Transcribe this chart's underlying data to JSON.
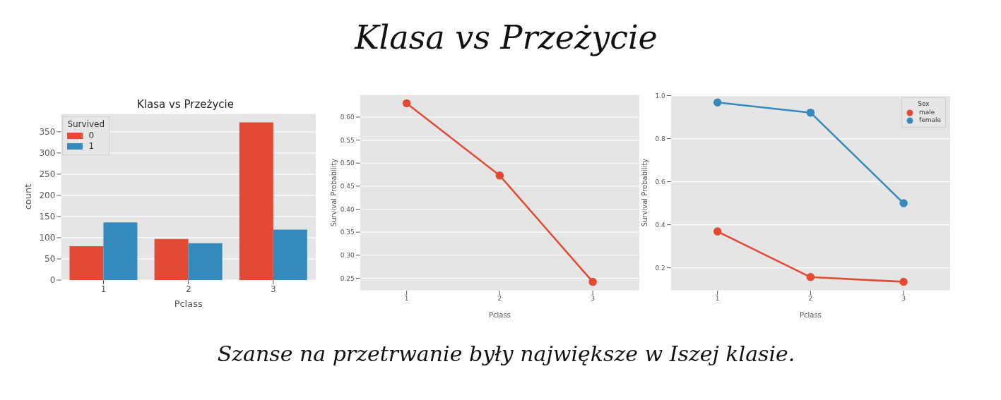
{
  "chart_data": [
    {
      "type": "other",
      "title": "Klasa vs Przeżycie",
      "annotations": [
        "Szanse na przetrwanie były największe w Iszej klasie."
      ]
    },
    {
      "type": "bar",
      "title": "Klasa vs Przeżycie",
      "xlabel": "Pclass",
      "ylabel": "count",
      "legend_title": "Survived",
      "categories": [
        "1",
        "2",
        "3"
      ],
      "series": [
        {
          "name": "0",
          "color": "#e24a33",
          "values": [
            80,
            97,
            372
          ]
        },
        {
          "name": "1",
          "color": "#348abd",
          "values": [
            136,
            87,
            119
          ]
        }
      ],
      "ylim": [
        0,
        393
      ],
      "yticks": [
        0,
        50,
        100,
        150,
        200,
        250,
        300,
        350
      ],
      "grid": "y",
      "legend": "top left"
    },
    {
      "type": "line",
      "xlabel": "Pclass",
      "ylabel": "Survival Probability",
      "categories": [
        "1",
        "2",
        "3"
      ],
      "series": [
        {
          "color": "#e24a33",
          "values": [
            0.63,
            0.473,
            0.242
          ]
        }
      ],
      "ylim": [
        0.223,
        0.649
      ],
      "yticks": [
        {
          "value": 0.25,
          "label": "0.25"
        },
        {
          "value": 0.3,
          "label": "0.30"
        },
        {
          "value": 0.35,
          "label": "0.35"
        },
        {
          "value": 0.4,
          "label": "0.40"
        },
        {
          "value": 0.45,
          "label": "0.45"
        },
        {
          "value": 0.5,
          "label": "0.50"
        },
        {
          "value": 0.55,
          "label": "0.55"
        },
        {
          "value": 0.6,
          "label": "0.60"
        }
      ],
      "grid": "y",
      "marker": "circle",
      "line_style": "solid"
    },
    {
      "type": "line",
      "xlabel": "Pclass",
      "ylabel": "Survival Probability",
      "legend_title": "Sex",
      "categories": [
        "1",
        "2",
        "3"
      ],
      "series": [
        {
          "name": "male",
          "color": "#e24a33",
          "values": [
            0.369,
            0.157,
            0.135
          ]
        },
        {
          "name": "female",
          "color": "#348abd",
          "values": [
            0.968,
            0.921,
            0.5
          ]
        }
      ],
      "ylim": [
        0.094,
        1.005
      ],
      "yticks": [
        0.2,
        0.4,
        0.6,
        0.8,
        {
          "value": 1.0,
          "label": "1.0"
        }
      ],
      "grid": "y",
      "marker": "circle",
      "line_style": "solid",
      "legend": "top right"
    }
  ]
}
